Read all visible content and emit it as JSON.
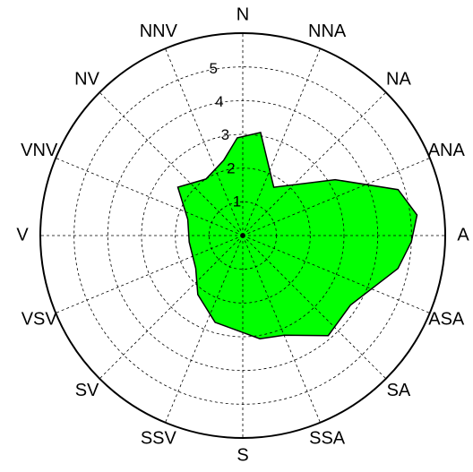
{
  "chart_data": {
    "type": "radar",
    "x": [
      9.8,
      20.4,
      32.7,
      58.8,
      73.5,
      83.3,
      92.1,
      102,
      122.9,
      139.5,
      157.4,
      170.6,
      197.7,
      217.3,
      235.1,
      263.1,
      286.4,
      306.7,
      326.9,
      345.8,
      356.8
    ],
    "values": [
      3.1,
      2.2,
      1.7,
      3.2,
      4.8,
      5.2,
      5.0,
      4.7,
      3.8,
      3.9,
      3.2,
      3.1,
      2.7,
      2.2,
      1.7,
      1.6,
      1.7,
      2.4,
      2.0,
      2.3,
      2.9
    ],
    "color": "#00ff00",
    "xticks": [
      {
        "value": 0,
        "label": "N"
      },
      {
        "value": 22.5,
        "label": "NNA"
      },
      {
        "value": 45,
        "label": "NA"
      },
      {
        "value": 67.5,
        "label": "ANA"
      },
      {
        "value": 90,
        "label": "A"
      },
      {
        "value": 112.5,
        "label": "ASA"
      },
      {
        "value": 135,
        "label": "SA"
      },
      {
        "value": 157.5,
        "label": "SSA"
      },
      {
        "value": 180,
        "label": "S"
      },
      {
        "value": 202.5,
        "label": "SSV"
      },
      {
        "value": 225,
        "label": "SV"
      },
      {
        "value": 247.5,
        "label": "VSV"
      },
      {
        "value": 270,
        "label": "V"
      },
      {
        "value": 292.5,
        "label": "VNV"
      },
      {
        "value": 315,
        "label": "NV"
      },
      {
        "value": 337.5,
        "label": "NNV"
      }
    ],
    "ylim": [
      0,
      6
    ],
    "yticks": [
      1,
      2,
      3,
      4,
      5
    ],
    "grid": true
  }
}
